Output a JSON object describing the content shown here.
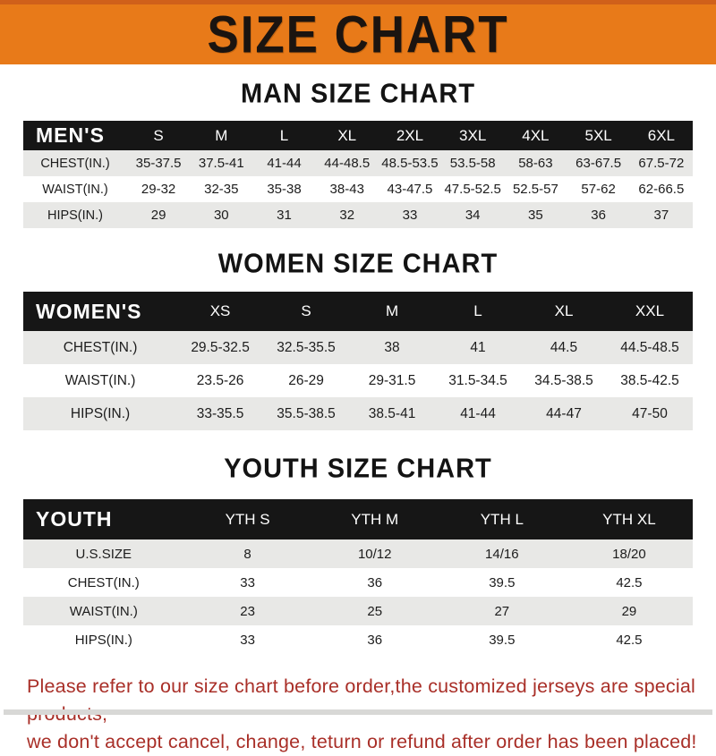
{
  "banner": {
    "title": "SIZE CHART"
  },
  "sections": [
    {
      "id": "men",
      "title": "MAN SIZE CHART",
      "header_label": "MEN'S",
      "columns": [
        "S",
        "M",
        "L",
        "XL",
        "2XL",
        "3XL",
        "4XL",
        "5XL",
        "6XL"
      ],
      "rows": [
        {
          "label": "CHEST(IN.)",
          "values": [
            "35-37.5",
            "37.5-41",
            "41-44",
            "44-48.5",
            "48.5-53.5",
            "53.5-58",
            "58-63",
            "63-67.5",
            "67.5-72"
          ]
        },
        {
          "label": "WAIST(IN.)",
          "values": [
            "29-32",
            "32-35",
            "35-38",
            "38-43",
            "43-47.5",
            "47.5-52.5",
            "52.5-57",
            "57-62",
            "62-66.5"
          ]
        },
        {
          "label": "HIPS(IN.)",
          "values": [
            "29",
            "30",
            "31",
            "32",
            "33",
            "34",
            "35",
            "36",
            "37"
          ]
        }
      ]
    },
    {
      "id": "women",
      "title": "WOMEN SIZE CHART",
      "header_label": "WOMEN'S",
      "columns": [
        "XS",
        "S",
        "M",
        "L",
        "XL",
        "XXL"
      ],
      "rows": [
        {
          "label": "CHEST(IN.)",
          "values": [
            "29.5-32.5",
            "32.5-35.5",
            "38",
            "41",
            "44.5",
            "44.5-48.5"
          ]
        },
        {
          "label": "WAIST(IN.)",
          "values": [
            "23.5-26",
            "26-29",
            "29-31.5",
            "31.5-34.5",
            "34.5-38.5",
            "38.5-42.5"
          ]
        },
        {
          "label": "HIPS(IN.)",
          "values": [
            "33-35.5",
            "35.5-38.5",
            "38.5-41",
            "41-44",
            "44-47",
            "47-50"
          ]
        }
      ]
    },
    {
      "id": "youth",
      "title": "YOUTH SIZE CHART",
      "header_label": "YOUTH",
      "columns": [
        "YTH S",
        "YTH M",
        "YTH L",
        "YTH XL"
      ],
      "rows": [
        {
          "label": "U.S.SIZE",
          "values": [
            "8",
            "10/12",
            "14/16",
            "18/20"
          ]
        },
        {
          "label": "CHEST(IN.)",
          "values": [
            "33",
            "36",
            "39.5",
            "42.5"
          ]
        },
        {
          "label": "WAIST(IN.)",
          "values": [
            "23",
            "25",
            "27",
            "29"
          ]
        },
        {
          "label": "HIPS(IN.)",
          "values": [
            "33",
            "36",
            "39.5",
            "42.5"
          ]
        }
      ]
    }
  ],
  "footer": {
    "line1": "Please refer to our size chart before order,the customized jerseys are special products,",
    "line2": "we don't accept cancel, change, teturn or refund after order has been placed!"
  },
  "colors": {
    "banner_orange": "#e87a19",
    "banner_top_strip": "#d0601a",
    "table_header_black": "#161616",
    "row_stripe_gray": "#e8e8e6",
    "footer_red": "#a92f28"
  }
}
